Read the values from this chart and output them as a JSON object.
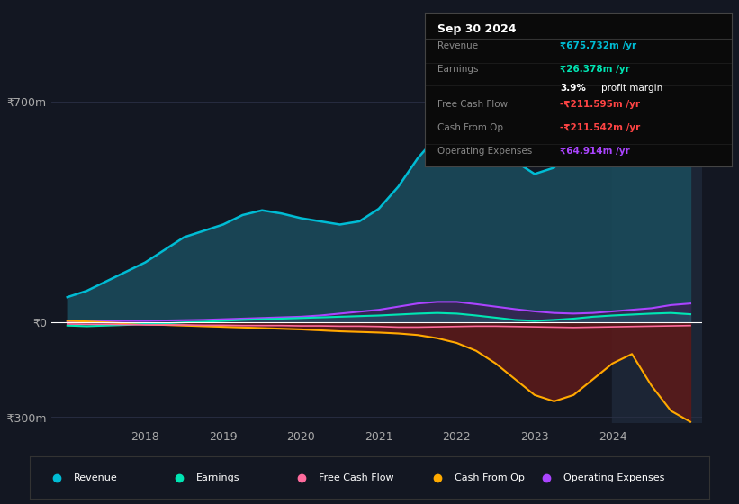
{
  "bg_color": "#131722",
  "plot_bg_color": "#131722",
  "highlight_bg_color": "#1c2535",
  "grid_color": "#2a3045",
  "zero_line_color": "#ffffff",
  "title_box": {
    "date": "Sep 30 2024",
    "rows": [
      {
        "label": "Revenue",
        "value": "₹675.732m /yr",
        "value_color": "#00bcd4"
      },
      {
        "label": "Earnings",
        "value": "₹26.378m /yr",
        "value_color": "#00e5b3"
      },
      {
        "label": "",
        "value": "3.9% profit margin",
        "value_color": "#ffffff"
      },
      {
        "label": "Free Cash Flow",
        "value": "-₹211.595m /yr",
        "value_color": "#ff4444"
      },
      {
        "label": "Cash From Op",
        "value": "-₹211.542m /yr",
        "value_color": "#ff4444"
      },
      {
        "label": "Operating Expenses",
        "value": "₹64.914m /yr",
        "value_color": "#aa44ff"
      }
    ]
  },
  "x_years": [
    2017.0,
    2017.25,
    2017.5,
    2017.75,
    2018.0,
    2018.25,
    2018.5,
    2018.75,
    2019.0,
    2019.25,
    2019.5,
    2019.75,
    2020.0,
    2020.25,
    2020.5,
    2020.75,
    2021.0,
    2021.25,
    2021.5,
    2021.75,
    2022.0,
    2022.25,
    2022.5,
    2022.75,
    2023.0,
    2023.25,
    2023.5,
    2023.75,
    2024.0,
    2024.25,
    2024.5,
    2024.75,
    2025.0
  ],
  "revenue": [
    80,
    100,
    130,
    160,
    190,
    230,
    270,
    290,
    310,
    340,
    355,
    345,
    330,
    320,
    310,
    320,
    360,
    430,
    520,
    590,
    630,
    620,
    570,
    510,
    470,
    490,
    560,
    630,
    690,
    710,
    720,
    730,
    740
  ],
  "earnings": [
    -10,
    -12,
    -10,
    -8,
    -5,
    -3,
    0,
    2,
    5,
    8,
    10,
    12,
    14,
    16,
    18,
    20,
    22,
    25,
    28,
    30,
    28,
    22,
    15,
    8,
    5,
    8,
    12,
    18,
    22,
    25,
    28,
    30,
    26
  ],
  "free_cash_flow": [
    -5,
    -6,
    -6,
    -7,
    -8,
    -8,
    -8,
    -9,
    -9,
    -10,
    -10,
    -10,
    -11,
    -11,
    -12,
    -12,
    -13,
    -15,
    -15,
    -14,
    -13,
    -12,
    -12,
    -13,
    -14,
    -15,
    -16,
    -15,
    -14,
    -13,
    -12,
    -11,
    -10
  ],
  "cash_from_op": [
    5,
    3,
    0,
    -3,
    -6,
    -8,
    -10,
    -12,
    -14,
    -16,
    -18,
    -20,
    -22,
    -25,
    -28,
    -30,
    -32,
    -35,
    -40,
    -50,
    -65,
    -90,
    -130,
    -180,
    -230,
    -250,
    -230,
    -180,
    -130,
    -100,
    -200,
    -280,
    -315
  ],
  "operating_expenses": [
    2,
    3,
    4,
    5,
    5,
    6,
    7,
    8,
    10,
    12,
    14,
    16,
    18,
    22,
    28,
    34,
    40,
    50,
    60,
    65,
    65,
    58,
    50,
    42,
    35,
    30,
    28,
    30,
    35,
    40,
    45,
    55,
    60
  ],
  "revenue_color": "#00bcd4",
  "revenue_fill_color": "#1a4a5a",
  "earnings_color": "#00e5b3",
  "free_cash_flow_color": "#ff6b9d",
  "cash_from_op_color": "#ffaa00",
  "operating_expenses_color": "#aa44ff",
  "ylim": [
    -320,
    750
  ],
  "yticks": [
    -300,
    0,
    700
  ],
  "ytick_labels": [
    "-₹300m",
    "₹0",
    "₹700m"
  ],
  "xticks": [
    2018,
    2019,
    2020,
    2021,
    2022,
    2023,
    2024
  ],
  "highlight_x_start": 2024.0,
  "legend_items": [
    {
      "label": "Revenue",
      "color": "#00bcd4"
    },
    {
      "label": "Earnings",
      "color": "#00e5b3"
    },
    {
      "label": "Free Cash Flow",
      "color": "#ff6b9d"
    },
    {
      "label": "Cash From Op",
      "color": "#ffaa00"
    },
    {
      "label": "Operating Expenses",
      "color": "#aa44ff"
    }
  ]
}
